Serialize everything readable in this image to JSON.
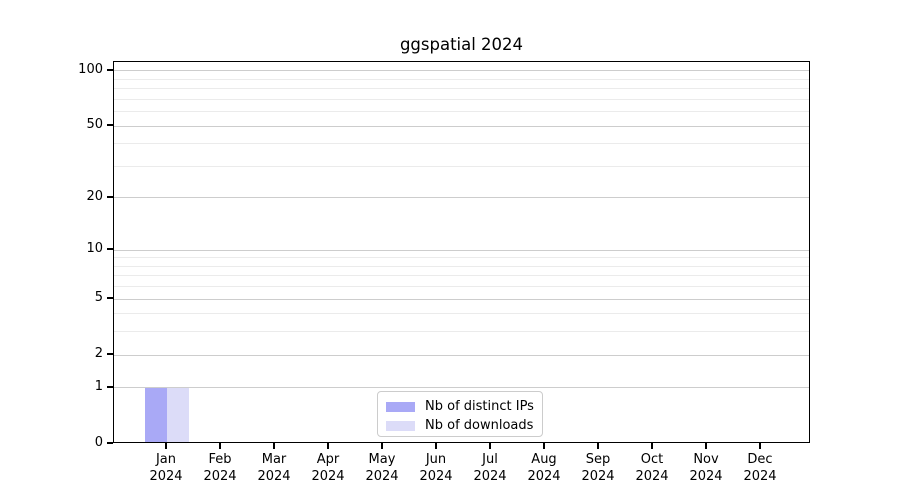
{
  "chart_data": {
    "type": "bar",
    "title": "ggspatial 2024",
    "categories": [
      "Jan",
      "Feb",
      "Mar",
      "Apr",
      "May",
      "Jun",
      "Jul",
      "Aug",
      "Sep",
      "Oct",
      "Nov",
      "Dec"
    ],
    "year": "2024",
    "series": [
      {
        "name": "Nb of distinct IPs",
        "color": "#a9a9f6",
        "values": [
          1,
          0,
          0,
          0,
          0,
          0,
          0,
          0,
          0,
          0,
          0,
          0
        ]
      },
      {
        "name": "Nb of downloads",
        "color": "#dcdcf8",
        "values": [
          1,
          0,
          0,
          0,
          0,
          0,
          0,
          0,
          0,
          0,
          0,
          0
        ]
      }
    ],
    "yscale": "log1p",
    "ylim": [
      0,
      112
    ],
    "yticks": [
      0,
      1,
      2,
      5,
      10,
      20,
      50,
      100
    ],
    "yticks_minor": [
      3,
      4,
      6,
      7,
      8,
      9,
      30,
      40,
      60,
      70,
      80,
      90
    ],
    "grid": true,
    "legend_position": "inside-bottom-center",
    "xlabel": "",
    "ylabel": "",
    "colors": {
      "grid_major": "#cdcdcd",
      "grid_minor": "#ebebeb",
      "spine": "#000000",
      "background": "#ffffff"
    }
  }
}
